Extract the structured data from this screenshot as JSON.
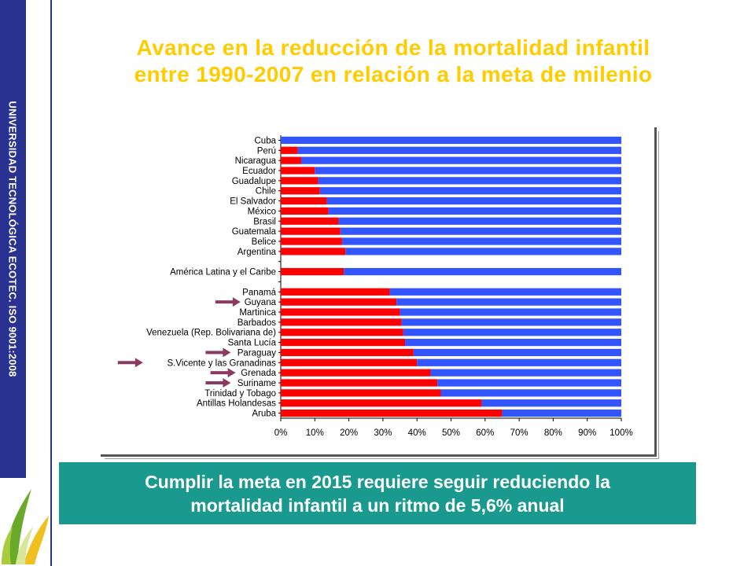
{
  "sidebar": {
    "text": "UNIVERSIDAD TECNOLÓGICA ECOTEC. ISO 9001:2008"
  },
  "title": {
    "line1": "Avance en la reducción de la mortalidad infantil",
    "line2": "entre 1990-2007 en relación a la meta de milenio"
  },
  "caption": {
    "line1": "Cumplir la meta en 2015 requiere seguir reduciendo la",
    "line2": "mortalidad infantil a un ritmo de 5,6% anual"
  },
  "colors": {
    "achieved": "#ff0000",
    "remaining": "#3355ff",
    "arrow": "#8b3a62",
    "title": "#ffcc00",
    "caption_bg": "#1a9a8e",
    "sidebar": "#2a3291"
  },
  "chart_data": {
    "type": "bar",
    "orientation": "horizontal",
    "stacked": "percent",
    "categories": [
      "Cuba",
      "Perú",
      "Nicaragua",
      "Ecuador",
      "Guadalupe",
      "Chile",
      "El Salvador",
      "México",
      "Brasil",
      "Guatemala",
      "Belice",
      "Argentina",
      "",
      "América Latina y el Caribe",
      "",
      "Panamá",
      "Guyana",
      "Martinica",
      "Barbados",
      "Venezuela (Rep. Bolivariana de)",
      "Santa Lucía",
      "Paraguay",
      "S.Vicente y las Granadinas",
      "Grenada",
      "Suriname",
      "Trinidad y Tobago",
      "Antillas Holandesas",
      "Aruba"
    ],
    "series": [
      {
        "color": "#ff0000",
        "values": [
          0,
          5,
          6,
          10,
          11,
          11.5,
          13.5,
          14,
          17,
          17.5,
          18,
          19,
          null,
          18.5,
          null,
          32,
          34,
          35,
          35.5,
          36,
          36.5,
          39,
          40,
          44,
          46,
          47,
          59,
          65
        ]
      },
      {
        "color": "#3355ff",
        "values": [
          100,
          95,
          94,
          90,
          89,
          88.5,
          86.5,
          86,
          83,
          82.5,
          82,
          81,
          null,
          81.5,
          null,
          68,
          66,
          65,
          64.5,
          64,
          63.5,
          61,
          60,
          56,
          54,
          53,
          41,
          35
        ]
      }
    ],
    "xlim": [
      0,
      100
    ],
    "xticks": [
      "0%",
      "10%",
      "20%",
      "30%",
      "40%",
      "50%",
      "60%",
      "70%",
      "80%",
      "90%",
      "100%"
    ],
    "arrows_at": [
      "Guyana",
      "Paraguay",
      "S.Vicente y las Granadinas",
      "Grenada",
      "Suriname"
    ],
    "title": "",
    "xlabel": "",
    "ylabel": ""
  }
}
